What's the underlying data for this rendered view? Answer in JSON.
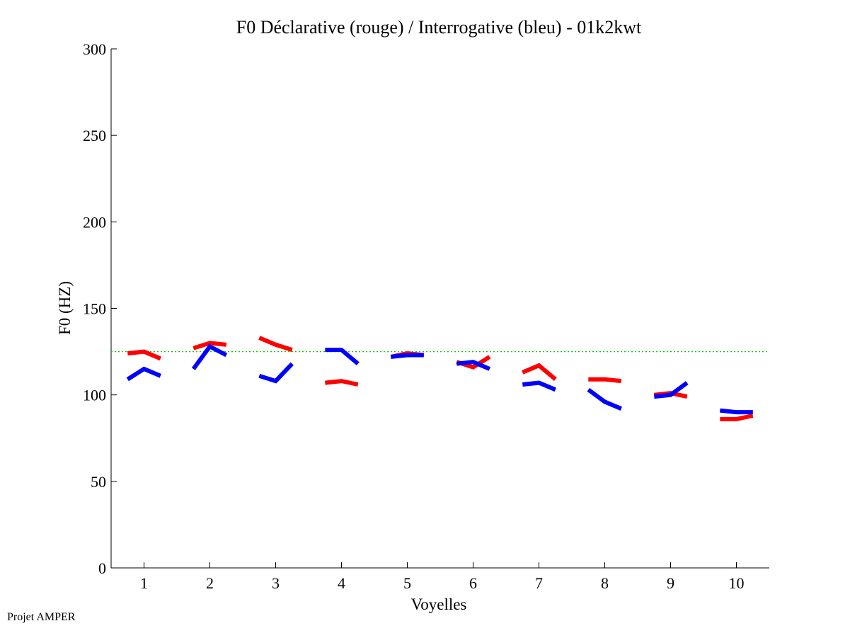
{
  "chart_data": {
    "type": "line",
    "title": "F0 Déclarative (rouge) / Interrogative (bleu) - 01k2kwt",
    "xlabel": "Voyelles",
    "ylabel": "F0 (HZ)",
    "ylim": [
      0,
      300
    ],
    "yticks": [
      0,
      50,
      100,
      150,
      200,
      250,
      300
    ],
    "xlim": [
      0.5,
      10.5
    ],
    "xticks": [
      "1",
      "2",
      "3",
      "4",
      "5",
      "6",
      "7",
      "8",
      "9",
      "10"
    ],
    "grid": false,
    "reference_line": {
      "y": 125,
      "color": "#00cc00",
      "style": "dotted"
    },
    "series": [
      {
        "color": "#ff0000",
        "segments": [
          {
            "x": [
              0.75,
              1.0,
              1.25
            ],
            "y": [
              124,
              125,
              121
            ]
          },
          {
            "x": [
              1.75,
              2.0,
              2.25
            ],
            "y": [
              127,
              130,
              129
            ]
          },
          {
            "x": [
              2.75,
              3.0,
              3.25
            ],
            "y": [
              133,
              129,
              126
            ]
          },
          {
            "x": [
              3.75,
              4.0,
              4.25
            ],
            "y": [
              107,
              108,
              106
            ]
          },
          {
            "x": [
              4.75,
              5.0,
              5.25
            ],
            "y": [
              122,
              124,
              123
            ]
          },
          {
            "x": [
              5.75,
              6.0,
              6.25
            ],
            "y": [
              119,
              116,
              122
            ]
          },
          {
            "x": [
              6.75,
              7.0,
              7.25
            ],
            "y": [
              113,
              117,
              109
            ]
          },
          {
            "x": [
              7.75,
              8.0,
              8.25
            ],
            "y": [
              109,
              109,
              108
            ]
          },
          {
            "x": [
              8.75,
              9.0,
              9.25
            ],
            "y": [
              100,
              101,
              99
            ]
          },
          {
            "x": [
              9.75,
              10.0,
              10.25
            ],
            "y": [
              86,
              86,
              88
            ]
          }
        ]
      },
      {
        "color": "#0000ff",
        "segments": [
          {
            "x": [
              0.75,
              1.0,
              1.25
            ],
            "y": [
              109,
              115,
              111
            ]
          },
          {
            "x": [
              1.75,
              2.0,
              2.25
            ],
            "y": [
              115,
              128,
              123
            ]
          },
          {
            "x": [
              2.75,
              3.0,
              3.25
            ],
            "y": [
              111,
              108,
              118
            ]
          },
          {
            "x": [
              3.75,
              4.0,
              4.25
            ],
            "y": [
              126,
              126,
              118
            ]
          },
          {
            "x": [
              4.75,
              5.0,
              5.25
            ],
            "y": [
              122,
              123,
              123
            ]
          },
          {
            "x": [
              5.75,
              6.0,
              6.25
            ],
            "y": [
              118,
              119,
              115
            ]
          },
          {
            "x": [
              6.75,
              7.0,
              7.25
            ],
            "y": [
              106,
              107,
              103
            ]
          },
          {
            "x": [
              7.75,
              8.0,
              8.25
            ],
            "y": [
              103,
              96,
              92
            ]
          },
          {
            "x": [
              8.75,
              9.0,
              9.25
            ],
            "y": [
              99,
              100,
              107
            ]
          },
          {
            "x": [
              9.75,
              10.0,
              10.25
            ],
            "y": [
              91,
              90,
              90
            ]
          }
        ]
      }
    ]
  },
  "footer": {
    "text": "Projet AMPER"
  }
}
